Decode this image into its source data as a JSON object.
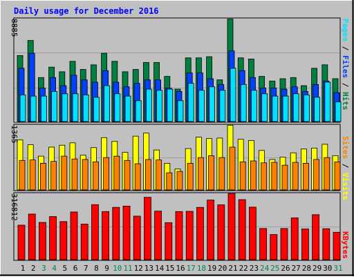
{
  "title": "Daily usage for December 2016",
  "colors": {
    "background": "#c0c0c0",
    "title": "#0000ff",
    "hits": "#008040",
    "files": "#0040ff",
    "pages": "#00e0ff",
    "visits": "#ffff00",
    "sites": "#ff8000",
    "kbytes": "#ff0000",
    "weekend_day": "#00805c",
    "weekday": "#000000"
  },
  "legends": {
    "top": {
      "pages": "Pages",
      "files": "Files",
      "hits": "Hits",
      "sep": " / "
    },
    "mid": {
      "sites": "Sites",
      "visits": "Visits",
      "sep": " / "
    },
    "bottom": {
      "kbytes": "KBytes"
    }
  },
  "ymax_labels": {
    "top": "8885",
    "mid": "1365",
    "bottom": "316812"
  },
  "chart_data": [
    {
      "type": "bar",
      "name": "top",
      "categories": [
        "1",
        "2",
        "3",
        "4",
        "5",
        "6",
        "7",
        "8",
        "9",
        "10",
        "11",
        "12",
        "13",
        "14",
        "15",
        "16",
        "17",
        "18",
        "19",
        "20",
        "21",
        "22",
        "23",
        "24",
        "25",
        "26",
        "27",
        "28",
        "29",
        "30",
        "31"
      ],
      "ylim": [
        0,
        8885
      ],
      "series": [
        {
          "name": "Hits",
          "values": [
            5700,
            7000,
            3800,
            4700,
            4300,
            5200,
            4500,
            4900,
            5900,
            5200,
            4300,
            4500,
            5100,
            5100,
            3900,
            2800,
            5500,
            5500,
            5600,
            3600,
            8850,
            5500,
            5400,
            3900,
            3500,
            3700,
            3800,
            3100,
            4600,
            4900,
            3700
          ]
        },
        {
          "name": "Files",
          "values": [
            4600,
            5900,
            2900,
            3800,
            3100,
            4000,
            3600,
            3400,
            4400,
            3400,
            3000,
            3300,
            3600,
            3600,
            2900,
            2600,
            4200,
            4200,
            3700,
            3200,
            6100,
            4400,
            3800,
            2900,
            2900,
            2800,
            3000,
            2600,
            3200,
            3500,
            2500
          ]
        },
        {
          "name": "Pages",
          "values": [
            2300,
            2200,
            2200,
            2600,
            2400,
            2400,
            2300,
            2100,
            3100,
            2400,
            2200,
            1800,
            2800,
            2700,
            2800,
            1800,
            3300,
            2700,
            3000,
            2700,
            4600,
            3200,
            2700,
            2400,
            2200,
            2200,
            2400,
            2300,
            2100,
            3400,
            1700
          ]
        }
      ]
    },
    {
      "type": "bar",
      "name": "mid",
      "categories": [
        "1",
        "2",
        "3",
        "4",
        "5",
        "6",
        "7",
        "8",
        "9",
        "10",
        "11",
        "12",
        "13",
        "14",
        "15",
        "16",
        "17",
        "18",
        "19",
        "20",
        "21",
        "22",
        "23",
        "24",
        "25",
        "26",
        "27",
        "28",
        "29",
        "30",
        "31"
      ],
      "ylim": [
        0,
        1365
      ],
      "series": [
        {
          "name": "Visits",
          "values": [
            1050,
            950,
            710,
            900,
            940,
            990,
            730,
            890,
            1100,
            1020,
            790,
            1130,
            1195,
            840,
            560,
            440,
            870,
            1110,
            1080,
            1090,
            1360,
            1065,
            1040,
            830,
            640,
            690,
            780,
            860,
            880,
            960,
            720
          ]
        },
        {
          "name": "Sites",
          "values": [
            620,
            630,
            560,
            600,
            710,
            650,
            640,
            590,
            680,
            710,
            620,
            550,
            640,
            630,
            360,
            390,
            560,
            680,
            720,
            680,
            900,
            590,
            610,
            570,
            580,
            520,
            580,
            560,
            640,
            680,
            590
          ]
        }
      ]
    },
    {
      "type": "bar",
      "name": "bottom",
      "categories": [
        "1",
        "2",
        "3",
        "4",
        "5",
        "6",
        "7",
        "8",
        "9",
        "10",
        "11",
        "12",
        "13",
        "14",
        "15",
        "16",
        "17",
        "18",
        "19",
        "20",
        "21",
        "22",
        "23",
        "24",
        "25",
        "26",
        "27",
        "28",
        "29",
        "30",
        "31"
      ],
      "ylim": [
        0,
        316812
      ],
      "series": [
        {
          "name": "KBytes",
          "values": [
            165000,
            218000,
            178000,
            206000,
            182000,
            228000,
            170000,
            263000,
            230000,
            250000,
            256000,
            208000,
            298000,
            232000,
            177000,
            230000,
            231000,
            250000,
            285000,
            262000,
            316000,
            287000,
            251000,
            149000,
            120000,
            149000,
            200000,
            147000,
            215000,
            148000,
            131000
          ]
        }
      ]
    }
  ]
}
